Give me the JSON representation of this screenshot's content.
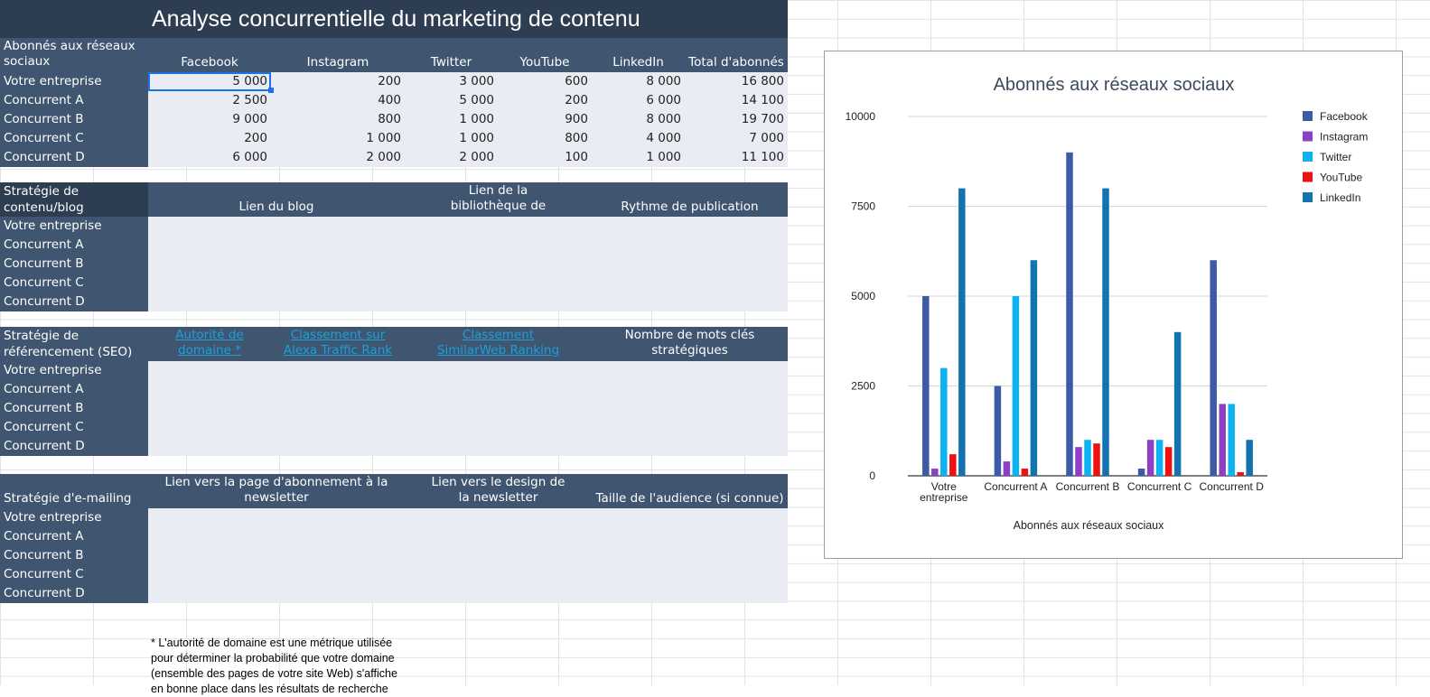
{
  "title": "Analyse concurrentielle du marketing de contenu",
  "social": {
    "header": "Abonnés aux réseaux sociaux",
    "columns": [
      "Facebook",
      "Instagram",
      "Twitter",
      "YouTube",
      "LinkedIn",
      "Total d'abonnés"
    ],
    "rows": [
      {
        "label": "Votre entreprise",
        "values": [
          "5 000",
          "200",
          "3 000",
          "600",
          "8 000",
          "16 800"
        ]
      },
      {
        "label": "Concurrent A",
        "values": [
          "2 500",
          "400",
          "5 000",
          "200",
          "6 000",
          "14 100"
        ]
      },
      {
        "label": "Concurrent B",
        "values": [
          "9 000",
          "800",
          "1 000",
          "900",
          "8 000",
          "19 700"
        ]
      },
      {
        "label": "Concurrent C",
        "values": [
          "200",
          "1 000",
          "1 000",
          "800",
          "4 000",
          "7 000"
        ]
      },
      {
        "label": "Concurrent D",
        "values": [
          "6 000",
          "2 000",
          "2 000",
          "100",
          "1 000",
          "11 100"
        ]
      }
    ]
  },
  "blog": {
    "header": "Stratégie de contenu/blog",
    "columns": [
      "Lien du blog",
      "Lien de la bibliothèque de ressources",
      "Rythme de publication"
    ],
    "rows": [
      "Votre entreprise",
      "Concurrent A",
      "Concurrent B",
      "Concurrent C",
      "Concurrent D"
    ]
  },
  "seo": {
    "header": "Stratégie de référencement (SEO)",
    "columns": [
      "Autorité de domaine *",
      "Classement sur Alexa Traffic Rank",
      "Classement SimilarWeb Ranking",
      "Nombre de mots clés stratégiques"
    ],
    "rows": [
      "Votre entreprise",
      "Concurrent A",
      "Concurrent B",
      "Concurrent C",
      "Concurrent D"
    ]
  },
  "email": {
    "header": "Stratégie d'e-mailing",
    "columns": [
      "Lien vers la page d'abonnement à la newsletter",
      "Lien vers le design de la newsletter",
      "Taille de l'audience (si connue)"
    ],
    "rows": [
      "Votre entreprise",
      "Concurrent A",
      "Concurrent B",
      "Concurrent C",
      "Concurrent D"
    ]
  },
  "footnote": "* L'autorité de domaine est une métrique utilisée pour déterminer la probabilité que votre domaine (ensemble des pages de votre site Web) s'affiche en bonne place dans les résultats de recherche",
  "colors": {
    "header_dark": "#2d3e52",
    "header": "#3f5570",
    "body": "#e9ecf2",
    "link": "#1aa0d8",
    "facebook": "#3b5ba5",
    "instagram": "#8e3fc6",
    "twitter": "#0db3f0",
    "youtube": "#ee1111",
    "linkedin": "#1273b0"
  },
  "chart_data": {
    "type": "bar",
    "title": "Abonnés aux réseaux sociaux",
    "xlabel": "Abonnés aux réseaux sociaux",
    "ylabel": "",
    "categories": [
      "Votre entreprise",
      "Concurrent A",
      "Concurrent B",
      "Concurrent C",
      "Concurrent D"
    ],
    "category_lines": [
      [
        "Votre",
        "entreprise"
      ],
      [
        "Concurrent A"
      ],
      [
        "Concurrent B"
      ],
      [
        "Concurrent C"
      ],
      [
        "Concurrent D"
      ]
    ],
    "ylim": [
      0,
      10000
    ],
    "yticks": [
      0,
      2500,
      5000,
      7500,
      10000
    ],
    "ytick_labels": [
      "0",
      "2500",
      "5000",
      "7500",
      "10000"
    ],
    "grid": true,
    "legend_position": "right",
    "series": [
      {
        "name": "Facebook",
        "color": "#3b5ba5",
        "values": [
          5000,
          2500,
          9000,
          200,
          6000
        ]
      },
      {
        "name": "Instagram",
        "color": "#8e3fc6",
        "values": [
          200,
          400,
          800,
          1000,
          2000
        ]
      },
      {
        "name": "Twitter",
        "color": "#0db3f0",
        "values": [
          3000,
          5000,
          1000,
          1000,
          2000
        ]
      },
      {
        "name": "YouTube",
        "color": "#ee1111",
        "values": [
          600,
          200,
          900,
          800,
          100
        ]
      },
      {
        "name": "LinkedIn",
        "color": "#1273b0",
        "values": [
          8000,
          6000,
          8000,
          4000,
          1000
        ]
      }
    ]
  }
}
